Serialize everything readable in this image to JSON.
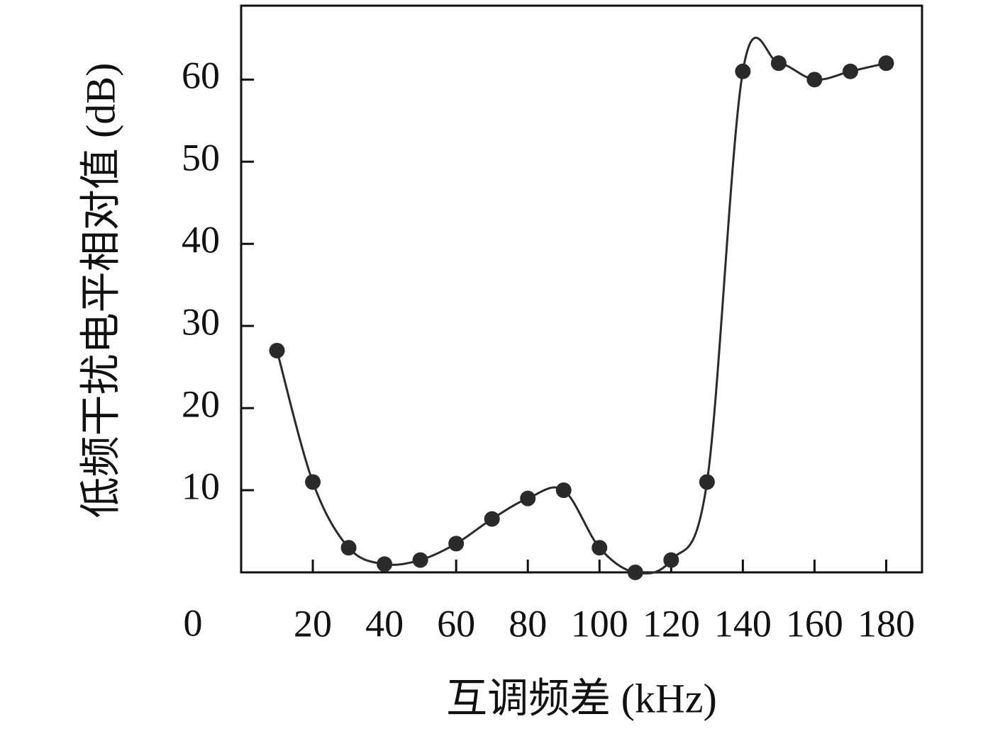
{
  "chart_data": {
    "type": "line",
    "x_label": "互调频差 (kHz)",
    "y_label": "低频干扰电平相对值 (dB)",
    "origin_label": "0",
    "x": [
      10,
      20,
      30,
      40,
      50,
      60,
      70,
      80,
      90,
      100,
      110,
      120,
      130,
      140,
      150,
      160,
      170,
      180
    ],
    "series": [
      {
        "color": "#2a2a2a",
        "values": [
          27,
          11,
          3,
          1,
          1.5,
          3.5,
          6.5,
          9,
          10,
          3,
          0,
          1.5,
          11,
          61,
          62,
          60,
          61,
          62
        ]
      }
    ],
    "xlim": [
      0,
      190
    ],
    "xticks": [
      20,
      40,
      60,
      80,
      100,
      120,
      140,
      160,
      180
    ],
    "ylim": [
      0,
      69
    ],
    "yticks": [
      10,
      20,
      30,
      40,
      50,
      60
    ],
    "grid": false
  }
}
